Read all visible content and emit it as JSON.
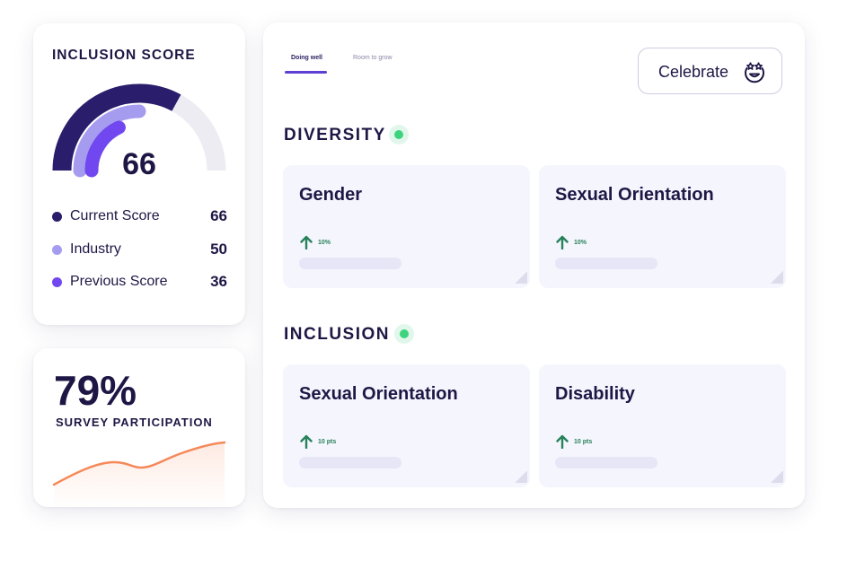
{
  "inclusion_score": {
    "title": "INCLUSION SCORE",
    "score": "66",
    "gauge": {
      "current": 66,
      "industry": 50,
      "previous": 36,
      "max": 100
    },
    "legend": [
      {
        "label": "Current Score",
        "value": "66",
        "color": "#2a1d6b"
      },
      {
        "label": "Industry",
        "value": "50",
        "color": "#a59cf0"
      },
      {
        "label": "Previous Score",
        "value": "36",
        "color": "#7148ef"
      }
    ],
    "track_color": "#ececf2"
  },
  "survey": {
    "percent": "79%",
    "label": "SURVEY PARTICIPATION",
    "line_color": "#f5895a"
  },
  "tabs": [
    {
      "label": "Doing well",
      "active": true
    },
    {
      "label": "Room to grow",
      "active": false
    }
  ],
  "celebrate": {
    "label": "Celebrate",
    "icon": "starry-eyes-smiley-icon"
  },
  "sections": [
    {
      "title": "DIVERSITY",
      "status_color": "#3ed47e",
      "cards": [
        {
          "title": "Gender",
          "change": "10%",
          "trend_icon": "arrow-up-icon"
        },
        {
          "title": "Sexual Orientation",
          "change": "10%",
          "trend_icon": "arrow-up-icon"
        }
      ]
    },
    {
      "title": "INCLUSION",
      "status_color": "#3ed47e",
      "cards": [
        {
          "title": "Sexual Orientation",
          "change": "10 pts",
          "trend_icon": "arrow-up-icon"
        },
        {
          "title": "Disability",
          "change": "10 pts",
          "trend_icon": "arrow-up-icon"
        }
      ]
    }
  ],
  "colors": {
    "accent": "#5d3fd3",
    "positive": "#27825a",
    "text": "#1e1745"
  }
}
